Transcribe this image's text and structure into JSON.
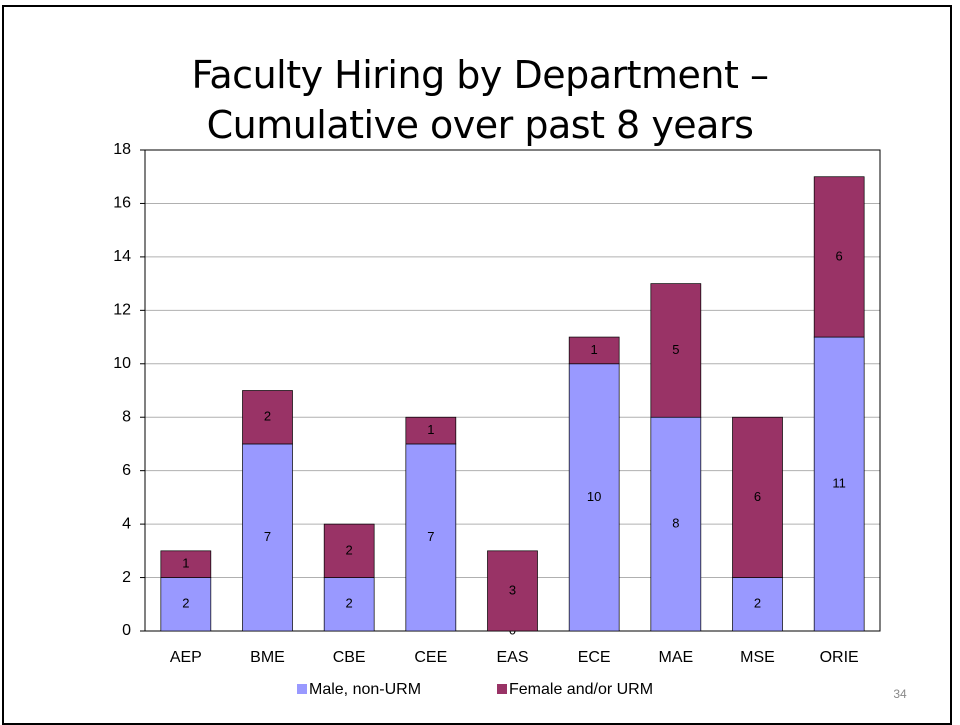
{
  "chart_data": {
    "type": "stacked_bar",
    "title": "Faculty Hiring by Department – Cumulative over past 8 years",
    "categories": [
      "AEP",
      "BME",
      "CBE",
      "CEE",
      "EAS",
      "ECE",
      "MAE",
      "MSE",
      "ORIE"
    ],
    "series": [
      {
        "name": "Male, non-URM",
        "color": "#9999ff",
        "values": [
          2,
          7,
          2,
          7,
          0,
          10,
          8,
          2,
          11
        ]
      },
      {
        "name": "Female and/or URM",
        "color": "#993366",
        "values": [
          1,
          2,
          2,
          1,
          3,
          1,
          5,
          6,
          6
        ]
      }
    ],
    "ylim": [
      0,
      18
    ],
    "yticks": [
      0,
      2,
      4,
      6,
      8,
      10,
      12,
      14,
      16,
      18
    ],
    "grid": true,
    "legend": "bottom"
  },
  "slide_number": "34"
}
